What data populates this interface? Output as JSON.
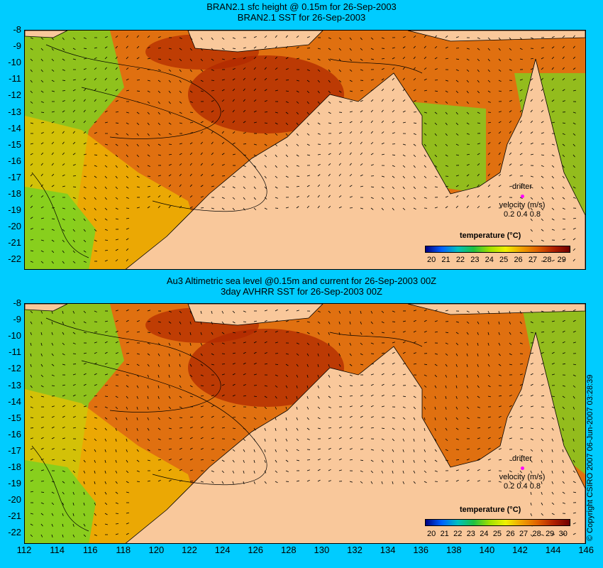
{
  "panels": [
    {
      "title_line1": "BRAN2.1 sfc height @ 0.15m for 26-Sep-2003",
      "title_line2": "BRAN2.1 SST for 26-Sep-2003",
      "legend_title": "temperature (°C)",
      "colorbar_ticks": [
        "20",
        "21",
        "22",
        "23",
        "24",
        "25",
        "26",
        "27",
        "28",
        "29"
      ],
      "drifter_label": "drifter",
      "velocity_label": "velocity (m/s)",
      "velocity_scale": "0.2  0.4  0.8"
    },
    {
      "title_line1": "Au3 Altimetric sea level  @0.15m and current for 26-Sep-2003 00Z",
      "title_line2": "3day AVHRR SST for 26-Sep-2003 00Z",
      "legend_title": "temperature (°C)",
      "colorbar_ticks": [
        "20",
        "21",
        "22",
        "23",
        "24",
        "25",
        "26",
        "27",
        "28",
        "29",
        "30"
      ],
      "drifter_label": "drifter",
      "velocity_label": "velocity (m/s)",
      "velocity_scale": "0.2  0.4  0.8"
    }
  ],
  "lat_ticks": [
    "-8",
    "-9",
    "-10",
    "-11",
    "-12",
    "-13",
    "-14",
    "-15",
    "-16",
    "-17",
    "-18",
    "-19",
    "-20",
    "-21",
    "-22"
  ],
  "lon_ticks": [
    "112",
    "114",
    "116",
    "118",
    "120",
    "122",
    "124",
    "126",
    "128",
    "130",
    "132",
    "134",
    "136",
    "138",
    "140",
    "142",
    "144",
    "146"
  ],
  "copyright": "© Copyright CSIRO 2007   06-Jun-2007 03:28:39",
  "colors": {
    "background": "#00ccff",
    "land": "#f9c89b",
    "warm": "#e07010",
    "hot": "#b02800",
    "mid": "#f0c000",
    "cool": "#80d020",
    "cold": "#2050c0"
  }
}
